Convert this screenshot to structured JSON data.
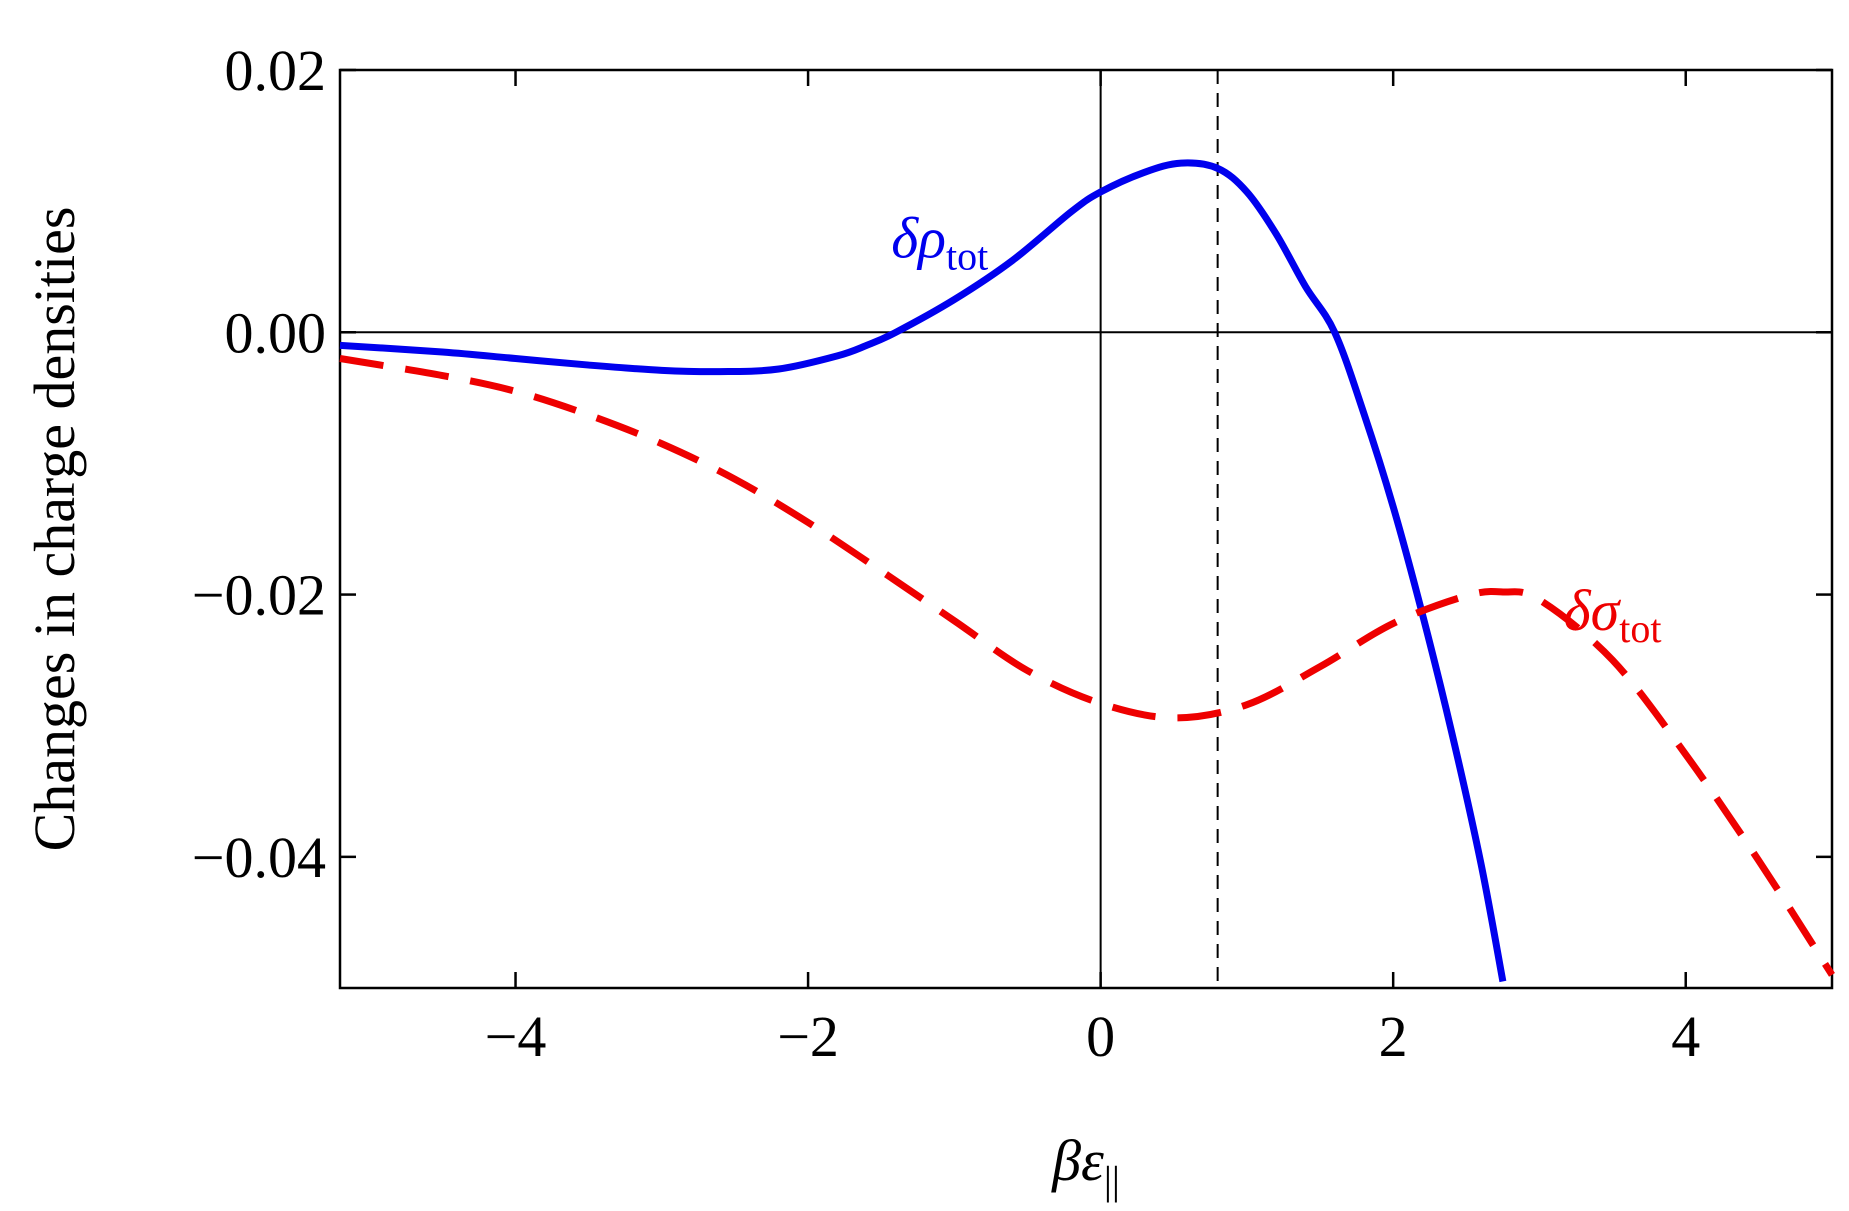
{
  "chart_data": {
    "type": "line",
    "title": "",
    "xlabel": "βε",
    "xlabel_subscript": "||",
    "ylabel": "Changes in charge densities",
    "xlim": [
      -5.2,
      5.0
    ],
    "ylim": [
      -0.05,
      0.02
    ],
    "x_ticks": [
      -4,
      -2,
      0,
      2,
      4
    ],
    "x_tick_labels": [
      "−4",
      "−2",
      "0",
      "2",
      "4"
    ],
    "y_ticks": [
      0.02,
      0.0,
      -0.02,
      -0.04
    ],
    "y_tick_labels": [
      "0.02",
      "0.00",
      "−0.02",
      "−0.04"
    ],
    "reference_lines": {
      "horizontal_y": 0.0,
      "vertical_x": 0.0,
      "dashed_vertical_x": 0.8
    },
    "grid": false,
    "legend": "none",
    "series": [
      {
        "name": "δρ",
        "name_subscript": "tot",
        "style": "solid",
        "color": "#0000ee",
        "x": [
          -5.2,
          -4.5,
          -4.0,
          -3.5,
          -3.0,
          -2.6,
          -2.2,
          -1.8,
          -1.6,
          -1.4,
          -1.0,
          -0.6,
          -0.2,
          0.0,
          0.3,
          0.55,
          0.8,
          1.0,
          1.2,
          1.4,
          1.6,
          1.8,
          2.0,
          2.2,
          2.4,
          2.6,
          2.75
        ],
        "y": [
          -0.001,
          -0.0015,
          -0.002,
          -0.0025,
          -0.0029,
          -0.003,
          -0.0028,
          -0.0018,
          -0.001,
          0.0,
          0.0025,
          0.0055,
          0.0092,
          0.0107,
          0.0122,
          0.0129,
          0.0125,
          0.0107,
          0.0075,
          0.0035,
          0.0,
          -0.0062,
          -0.0133,
          -0.0215,
          -0.0305,
          -0.0405,
          -0.0495
        ]
      },
      {
        "name": "δσ",
        "name_subscript": "tot",
        "style": "dashed",
        "color": "#ee0000",
        "x": [
          -5.2,
          -4.5,
          -4.0,
          -3.5,
          -3.0,
          -2.5,
          -2.0,
          -1.5,
          -1.0,
          -0.5,
          0.0,
          0.5,
          1.0,
          1.5,
          2.0,
          2.5,
          2.75,
          3.0,
          3.5,
          4.0,
          4.5,
          5.0
        ],
        "y": [
          -0.002,
          -0.0033,
          -0.0045,
          -0.0063,
          -0.0085,
          -0.0112,
          -0.0145,
          -0.0182,
          -0.022,
          -0.0258,
          -0.0283,
          -0.0294,
          -0.0284,
          -0.0255,
          -0.0222,
          -0.0201,
          -0.0198,
          -0.0204,
          -0.025,
          -0.0322,
          -0.0403,
          -0.049
        ]
      }
    ],
    "annotations": [
      {
        "series": 0,
        "text": "δρ",
        "subscript": "tot",
        "at_x": -1.1,
        "at_y": 0.0057
      },
      {
        "series": 1,
        "text": "δσ",
        "subscript": "tot",
        "at_x": 3.5,
        "at_y": -0.0227
      }
    ]
  }
}
